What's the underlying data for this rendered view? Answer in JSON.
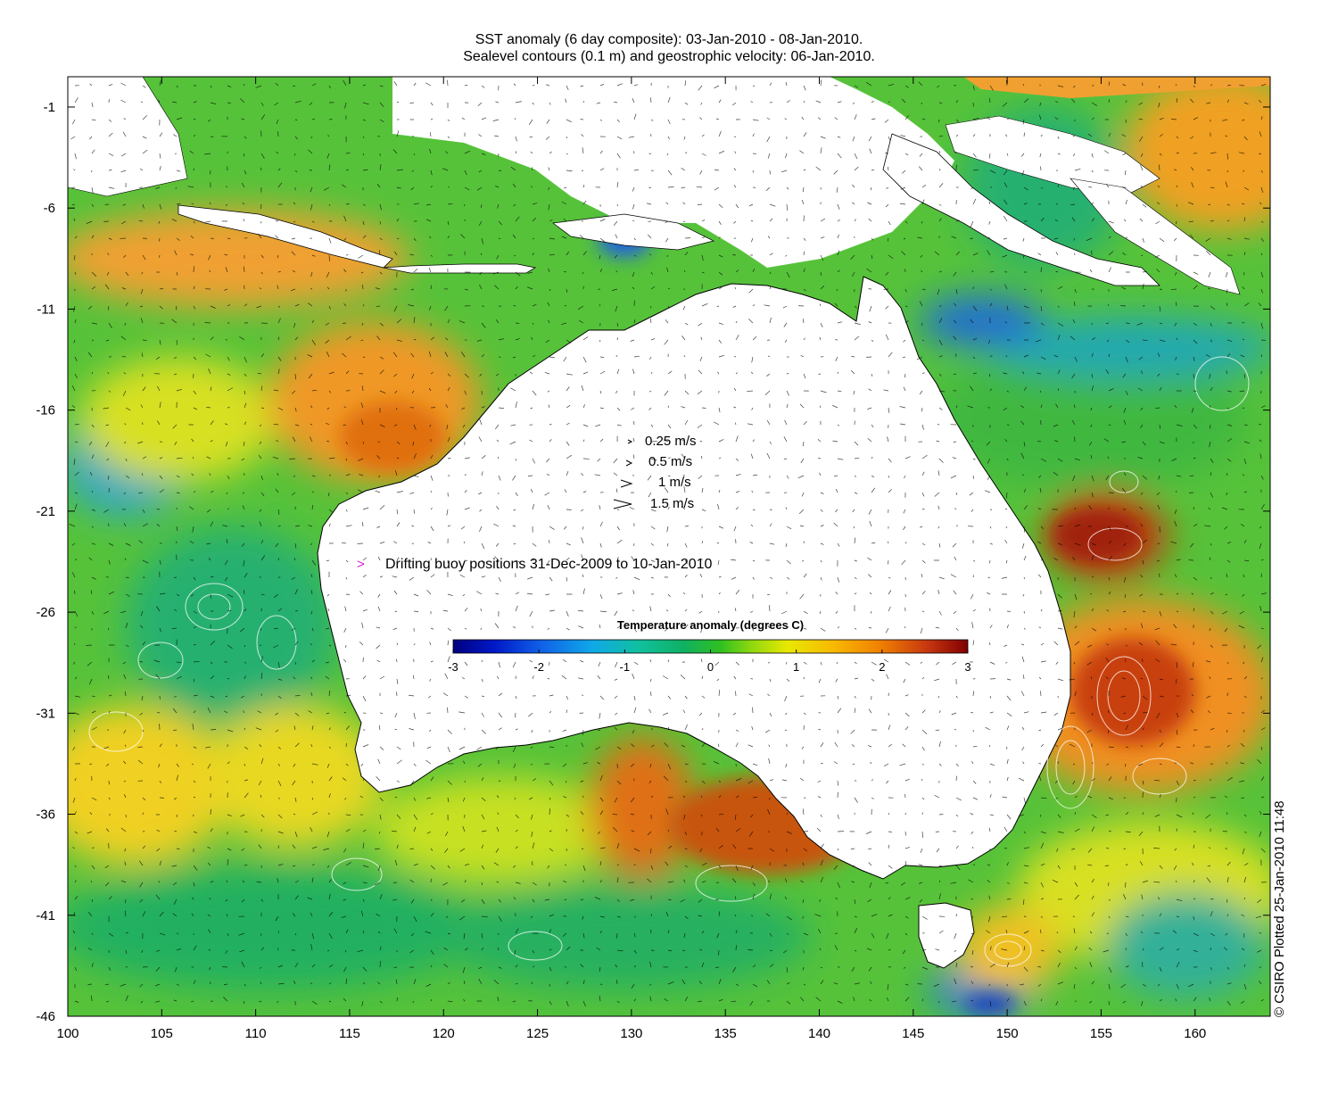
{
  "title": {
    "line1": "SST anomaly (6 day composite): 03-Jan-2010 - 08-Jan-2010.",
    "line2": "Sealevel contours (0.1 m) and geostrophic velocity: 06-Jan-2010."
  },
  "axes": {
    "x_ticks": [
      "100",
      "105",
      "110",
      "115",
      "120",
      "125",
      "130",
      "135",
      "140",
      "145",
      "150",
      "155",
      "160"
    ],
    "x_values": [
      100,
      105,
      110,
      115,
      120,
      125,
      130,
      135,
      140,
      145,
      150,
      155,
      160
    ],
    "y_ticks": [
      "-1",
      "-6",
      "-11",
      "-16",
      "-21",
      "-26",
      "-31",
      "-36",
      "-41",
      "-46"
    ],
    "y_values": [
      -1,
      -6,
      -11,
      -16,
      -21,
      -26,
      -31,
      -36,
      -41,
      -46
    ],
    "lon_range": [
      100,
      164
    ],
    "lat_range": [
      -46,
      0.5
    ]
  },
  "velocity_legend": [
    {
      "label": "0.25 m/s",
      "speed": 0.25
    },
    {
      "label": "0.5 m/s",
      "speed": 0.5
    },
    {
      "label": "1 m/s",
      "speed": 1
    },
    {
      "label": "1.5 m/s",
      "speed": 1.5
    }
  ],
  "buoy_legend": {
    "symbol": ">",
    "label": "Drifting buoy positions 31-Dec-2009 to 10-Jan-2010",
    "color": "#d020d0"
  },
  "colorbar": {
    "title": "Temperature anomaly (degrees C)",
    "tick_labels": [
      "-3",
      "-2",
      "-1",
      "0",
      "1",
      "2",
      "3"
    ],
    "range": [
      -3,
      3
    ],
    "colors": [
      "#00007f",
      "#0018c8",
      "#1060e8",
      "#10a8e8",
      "#10c8b0",
      "#10b060",
      "#20b820",
      "#60cc10",
      "#c0e000",
      "#f0e000",
      "#f8b000",
      "#f08000",
      "#d05010",
      "#b02010",
      "#800000"
    ]
  },
  "credit": "© CSIRO Plotted 25-Jan-2010 11:48"
}
